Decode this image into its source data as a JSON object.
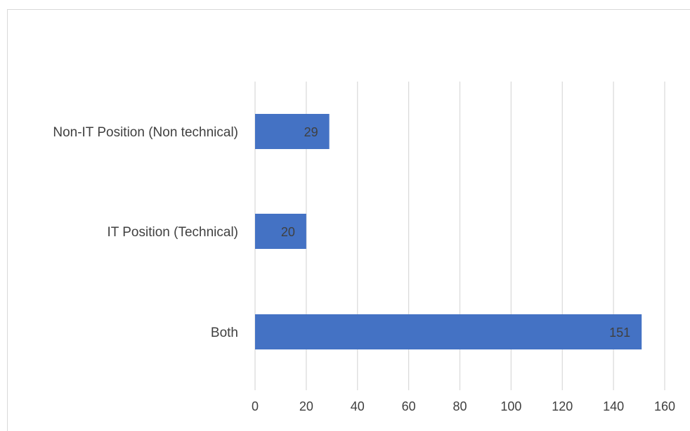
{
  "chart_data": {
    "type": "bar",
    "orientation": "horizontal",
    "title": "",
    "xlabel": "",
    "ylabel": "",
    "categories": [
      "Non-IT Position (Non technical)",
      "IT Position (Technical)",
      "Both"
    ],
    "values": [
      29,
      20,
      151
    ],
    "xlim": [
      0,
      160
    ],
    "xticks": [
      0,
      20,
      40,
      60,
      80,
      100,
      120,
      140,
      160
    ],
    "xtick_labels": [
      "0",
      "20",
      "40",
      "60",
      "80",
      "100",
      "120",
      "140",
      "160"
    ],
    "data_labels": [
      "29",
      "20",
      "151"
    ],
    "grid": "vertical",
    "legend": "none",
    "bar_color": "#4472C4",
    "grid_color": "#d9d9d9",
    "text_color": "#404040"
  }
}
